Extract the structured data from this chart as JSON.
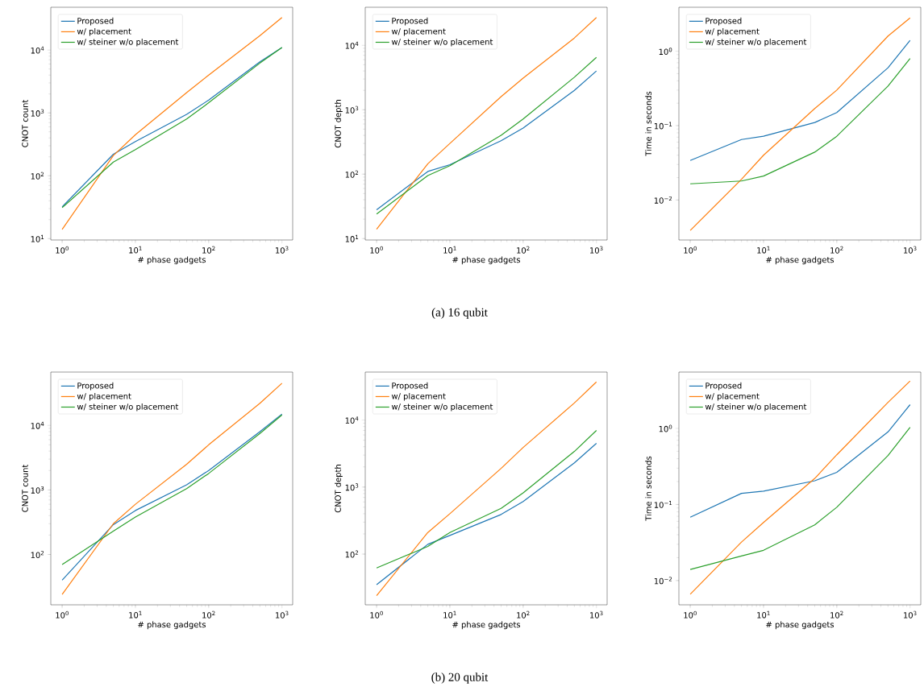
{
  "chart_data": [
    {
      "type": "line",
      "xlabel": "# phase gadgets",
      "ylabel": "CNOT count",
      "log": "xy",
      "legend": "top left",
      "x": [
        1,
        5,
        10,
        50,
        100,
        500,
        1000
      ],
      "xlim": [
        0.7,
        1400
      ],
      "ylim": [
        9.5,
        48000
      ],
      "xticks": [
        {
          "value": 1,
          "label": "10$^{0}$"
        },
        {
          "value": 10,
          "label": "10$^{1}$"
        },
        {
          "value": 100,
          "label": "10$^{2}$"
        },
        {
          "value": 1000,
          "label": "10$^{3}$"
        }
      ],
      "yticks": [
        {
          "value": 10,
          "label": "10$^{1}$"
        },
        {
          "value": 100,
          "label": "10$^{2}$"
        },
        {
          "value": 1000,
          "label": "10$^{3}$"
        },
        {
          "value": 10000,
          "label": "10$^{4}$"
        }
      ],
      "series": [
        {
          "name": "Proposed",
          "color": "#1f77b4",
          "values": [
            32,
            220,
            350,
            950,
            1600,
            6500,
            11000
          ]
        },
        {
          "name": "w/ placement",
          "color": "#ff7f0e",
          "values": [
            14,
            210,
            450,
            2100,
            4000,
            17000,
            33000
          ]
        },
        {
          "name": "w/ steiner w/o placement",
          "color": "#2ca02c",
          "values": [
            31,
            165,
            260,
            800,
            1450,
            6200,
            11000
          ]
        }
      ]
    },
    {
      "type": "line",
      "xlabel": "# phase gadgets",
      "ylabel": "CNOT depth",
      "log": "xy",
      "legend": "top left",
      "x": [
        1,
        5,
        10,
        50,
        100,
        500,
        1000
      ],
      "xlim": [
        0.7,
        1400
      ],
      "ylim": [
        9.5,
        39000
      ],
      "xticks": [
        {
          "value": 1,
          "label": "10$^{0}$"
        },
        {
          "value": 10,
          "label": "10$^{1}$"
        },
        {
          "value": 100,
          "label": "10$^{2}$"
        },
        {
          "value": 1000,
          "label": "10$^{3}$"
        }
      ],
      "yticks": [
        {
          "value": 10,
          "label": "10$^{1}$"
        },
        {
          "value": 100,
          "label": "10$^{2}$"
        },
        {
          "value": 1000,
          "label": "10$^{3}$"
        },
        {
          "value": 10000,
          "label": "10$^{4}$"
        }
      ],
      "annotations": [
        "(a) 16 qubit"
      ],
      "series": [
        {
          "name": "Proposed",
          "color": "#1f77b4",
          "values": [
            28,
            110,
            140,
            330,
            520,
            2000,
            4000
          ]
        },
        {
          "name": "w/ placement",
          "color": "#ff7f0e",
          "values": [
            14,
            145,
            300,
            1600,
            3100,
            13000,
            27000
          ]
        },
        {
          "name": "w/ steiner w/o placement",
          "color": "#2ca02c",
          "values": [
            24,
            95,
            135,
            400,
            720,
            3200,
            6500
          ]
        }
      ]
    },
    {
      "type": "line",
      "xlabel": "# phase gadgets",
      "ylabel": "Time in seconds",
      "log": "xy",
      "legend": "top left",
      "x": [
        1,
        5,
        10,
        50,
        100,
        500,
        1000
      ],
      "xlim": [
        0.7,
        1400
      ],
      "ylim": [
        0.0029,
        3.9
      ],
      "xticks": [
        {
          "value": 1,
          "label": "10$^{0}$"
        },
        {
          "value": 10,
          "label": "10$^{1}$"
        },
        {
          "value": 100,
          "label": "10$^{2}$"
        },
        {
          "value": 1000,
          "label": "10$^{3}$"
        }
      ],
      "yticks": [
        {
          "value": 0.01,
          "label": "10$^{−2}$"
        },
        {
          "value": 0.1,
          "label": "10$^{−1}$"
        },
        {
          "value": 1,
          "label": "10$^{0}$"
        }
      ],
      "series": [
        {
          "name": "Proposed",
          "color": "#1f77b4",
          "values": [
            0.034,
            0.065,
            0.072,
            0.11,
            0.15,
            0.6,
            1.4
          ]
        },
        {
          "name": "w/ placement",
          "color": "#ff7f0e",
          "values": [
            0.0039,
            0.019,
            0.04,
            0.17,
            0.3,
            1.6,
            2.8
          ]
        },
        {
          "name": "w/ steiner w/o placement",
          "color": "#2ca02c",
          "values": [
            0.0165,
            0.018,
            0.021,
            0.044,
            0.072,
            0.34,
            0.8
          ]
        }
      ]
    },
    {
      "type": "line",
      "xlabel": "# phase gadgets",
      "ylabel": "CNOT count",
      "log": "xy",
      "legend": "top left",
      "x": [
        1,
        5,
        10,
        50,
        100,
        500,
        1000
      ],
      "xlim": [
        0.7,
        1400
      ],
      "ylim": [
        16.6,
        67000
      ],
      "xticks": [
        {
          "value": 1,
          "label": "10$^{0}$"
        },
        {
          "value": 10,
          "label": "10$^{1}$"
        },
        {
          "value": 100,
          "label": "10$^{2}$"
        },
        {
          "value": 1000,
          "label": "10$^{3}$"
        }
      ],
      "yticks": [
        {
          "value": 100,
          "label": "10$^{2}$"
        },
        {
          "value": 1000,
          "label": "10$^{3}$"
        },
        {
          "value": 10000,
          "label": "10$^{4}$"
        }
      ],
      "series": [
        {
          "name": "Proposed",
          "color": "#1f77b4",
          "values": [
            40,
            290,
            480,
            1200,
            2000,
            8000,
            15000
          ]
        },
        {
          "name": "w/ placement",
          "color": "#ff7f0e",
          "values": [
            24,
            300,
            600,
            2500,
            5000,
            22000,
            45000
          ]
        },
        {
          "name": "w/ steiner w/o placement",
          "color": "#2ca02c",
          "values": [
            70,
            230,
            380,
            1050,
            1800,
            7500,
            14500
          ]
        }
      ]
    },
    {
      "type": "line",
      "xlabel": "# phase gadgets",
      "ylabel": "CNOT depth",
      "log": "xy",
      "legend": "top left",
      "x": [
        1,
        5,
        10,
        50,
        100,
        500,
        1000
      ],
      "xlim": [
        0.7,
        1400
      ],
      "ylim": [
        17.5,
        52000
      ],
      "xticks": [
        {
          "value": 1,
          "label": "10$^{0}$"
        },
        {
          "value": 10,
          "label": "10$^{1}$"
        },
        {
          "value": 100,
          "label": "10$^{2}$"
        },
        {
          "value": 1000,
          "label": "10$^{3}$"
        }
      ],
      "yticks": [
        {
          "value": 100,
          "label": "10$^{2}$"
        },
        {
          "value": 1000,
          "label": "10$^{3}$"
        },
        {
          "value": 10000,
          "label": "10$^{4}$"
        }
      ],
      "annotations": [
        "(b) 20 qubit"
      ],
      "series": [
        {
          "name": "Proposed",
          "color": "#1f77b4",
          "values": [
            35,
            140,
            190,
            390,
            610,
            2300,
            4500
          ]
        },
        {
          "name": "w/ placement",
          "color": "#ff7f0e",
          "values": [
            24,
            210,
            400,
            1900,
            3900,
            18000,
            37000
          ]
        },
        {
          "name": "w/ steiner w/o placement",
          "color": "#2ca02c",
          "values": [
            62,
            130,
            210,
            480,
            820,
            3400,
            7000
          ]
        }
      ]
    },
    {
      "type": "line",
      "xlabel": "# phase gadgets",
      "ylabel": "Time in seconds",
      "log": "xy",
      "legend": "top left",
      "x": [
        1,
        5,
        10,
        50,
        100,
        500,
        1000
      ],
      "xlim": [
        0.7,
        1400
      ],
      "ylim": [
        0.0048,
        5.5
      ],
      "xticks": [
        {
          "value": 1,
          "label": "10$^{0}$"
        },
        {
          "value": 10,
          "label": "10$^{1}$"
        },
        {
          "value": 100,
          "label": "10$^{2}$"
        },
        {
          "value": 1000,
          "label": "10$^{3}$"
        }
      ],
      "yticks": [
        {
          "value": 0.01,
          "label": "10$^{−2}$"
        },
        {
          "value": 0.1,
          "label": "10$^{−1}$"
        },
        {
          "value": 1,
          "label": "10$^{0}$"
        }
      ],
      "series": [
        {
          "name": "Proposed",
          "color": "#1f77b4",
          "values": [
            0.068,
            0.14,
            0.15,
            0.205,
            0.265,
            0.9,
            2.05
          ]
        },
        {
          "name": "w/ placement",
          "color": "#ff7f0e",
          "values": [
            0.0066,
            0.032,
            0.058,
            0.22,
            0.45,
            2.2,
            4.2
          ]
        },
        {
          "name": "w/ steiner w/o placement",
          "color": "#2ca02c",
          "values": [
            0.014,
            0.021,
            0.025,
            0.054,
            0.092,
            0.44,
            1.03
          ]
        }
      ]
    }
  ]
}
